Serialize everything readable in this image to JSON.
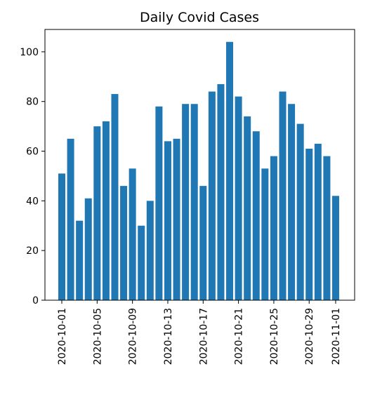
{
  "chart_data": {
    "type": "bar",
    "title": "Daily Covid Cases",
    "xlabel": "",
    "ylabel": "",
    "color": "#1f77b4",
    "grid": false,
    "ylim": [
      0,
      109
    ],
    "yticks": [
      0,
      20,
      40,
      60,
      80,
      100
    ],
    "categories": [
      "2020-10-01",
      "2020-10-02",
      "2020-10-03",
      "2020-10-04",
      "2020-10-05",
      "2020-10-06",
      "2020-10-07",
      "2020-10-08",
      "2020-10-09",
      "2020-10-10",
      "2020-10-11",
      "2020-10-12",
      "2020-10-13",
      "2020-10-14",
      "2020-10-15",
      "2020-10-16",
      "2020-10-17",
      "2020-10-18",
      "2020-10-19",
      "2020-10-20",
      "2020-10-21",
      "2020-10-22",
      "2020-10-23",
      "2020-10-24",
      "2020-10-25",
      "2020-10-26",
      "2020-10-27",
      "2020-10-28",
      "2020-10-29",
      "2020-10-30",
      "2020-10-31",
      "2020-11-01"
    ],
    "values": [
      51,
      65,
      32,
      41,
      70,
      72,
      83,
      46,
      53,
      30,
      40,
      78,
      64,
      65,
      79,
      79,
      46,
      84,
      87,
      104,
      82,
      74,
      68,
      53,
      58,
      84,
      79,
      71,
      61,
      63,
      58,
      42
    ],
    "xtick_labels": [
      "2020-10-01",
      "2020-10-05",
      "2020-10-09",
      "2020-10-13",
      "2020-10-17",
      "2020-10-21",
      "2020-10-25",
      "2020-10-29",
      "2020-11-01"
    ],
    "xtick_indices": [
      0,
      4,
      8,
      12,
      16,
      20,
      24,
      28,
      31
    ]
  }
}
